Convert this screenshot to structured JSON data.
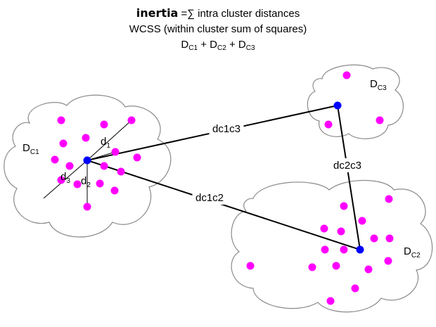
{
  "header": {
    "inertia_word": "inertia",
    "inertia_rest": " =∑ intra cluster distances",
    "wcss": "WCSS (within cluster sum of squares)",
    "sum_terms": [
      {
        "base": "D",
        "sub": "C1",
        "sep": " + "
      },
      {
        "base": "D",
        "sub": "C2",
        "sep": " + "
      },
      {
        "base": "D",
        "sub": "C3",
        "sep": ""
      }
    ]
  },
  "clusters": [
    {
      "id": "c1",
      "label": "D",
      "sub": "C1"
    },
    {
      "id": "c2",
      "label": "D",
      "sub": "C2"
    },
    {
      "id": "c3",
      "label": "D",
      "sub": "C3"
    }
  ],
  "distance_labels": {
    "d1": {
      "base": "d",
      "sub": "1"
    },
    "d2": {
      "base": "d",
      "sub": "2"
    },
    "d3": {
      "base": "d",
      "sub": "3"
    }
  },
  "inter_labels": {
    "c1c3": "dc1c3",
    "c2c3": "dc2c3",
    "c1c2": "dc1c2"
  },
  "colors": {
    "point": "#ff00ff",
    "centroid": "#0000ff",
    "outline": "#8a8a8a",
    "line": "#000000"
  }
}
